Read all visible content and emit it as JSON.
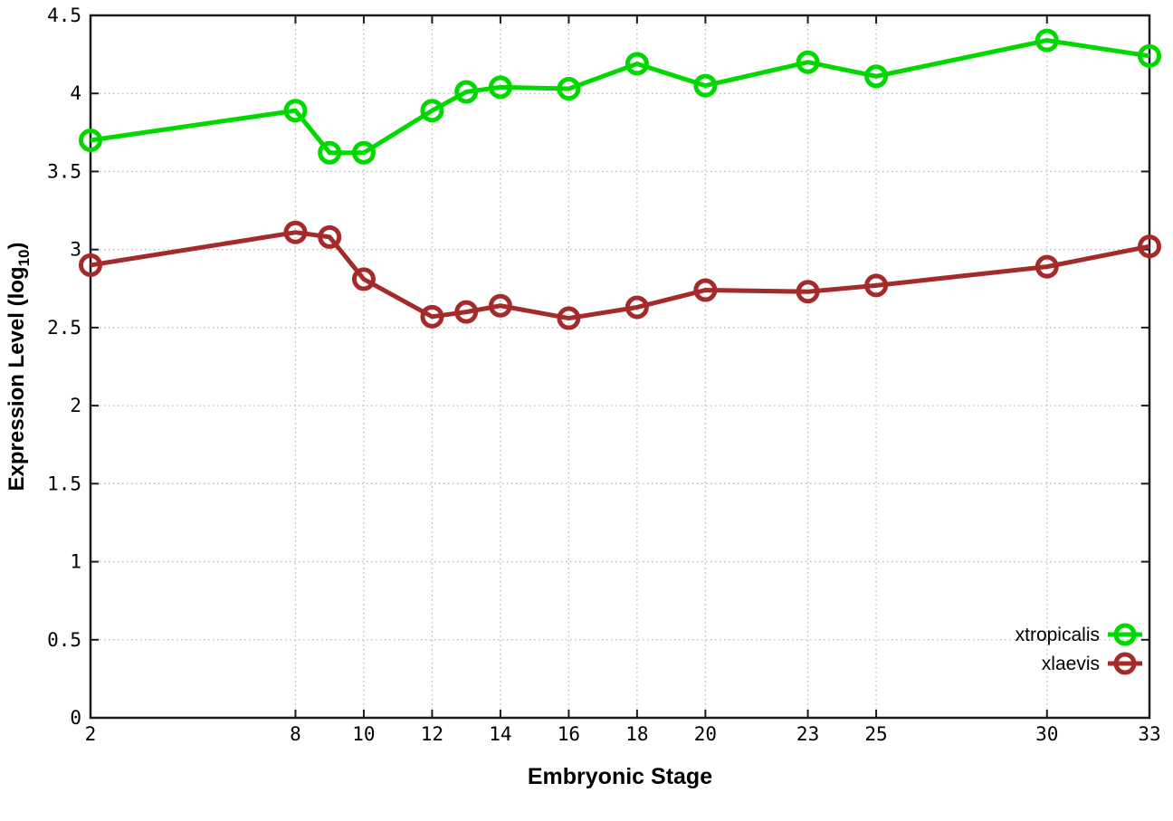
{
  "chart_data": {
    "type": "line",
    "title": "",
    "xlabel": "Embryonic Stage",
    "ylabel": "Expression Level (log10)",
    "ylabel_parts": {
      "main": "Expression Level (log",
      "sub": "10",
      "end": ")"
    },
    "x": [
      2,
      8,
      9,
      10,
      12,
      13,
      14,
      16,
      18,
      20,
      23,
      25,
      30,
      33
    ],
    "series": [
      {
        "name": "xtropicalis",
        "color": "#00D800",
        "values": [
          3.7,
          3.89,
          3.62,
          3.62,
          3.89,
          4.01,
          4.04,
          4.03,
          4.19,
          4.05,
          4.2,
          4.11,
          4.34,
          4.24
        ]
      },
      {
        "name": "xlaevis",
        "color": "#A52A2A",
        "values": [
          2.9,
          3.11,
          3.08,
          2.81,
          2.57,
          2.6,
          2.64,
          2.56,
          2.63,
          2.74,
          2.73,
          2.77,
          2.89,
          3.02
        ]
      }
    ],
    "xlim": [
      2,
      33
    ],
    "ylim": [
      0,
      4.5
    ],
    "xticks": [
      2,
      8,
      10,
      12,
      14,
      16,
      18,
      20,
      23,
      25,
      30,
      33
    ],
    "xtick_labels": [
      "2",
      "8",
      "10",
      "12",
      "14",
      "16",
      "18",
      "20",
      "23",
      "25",
      "30",
      "33"
    ],
    "yticks": [
      0,
      0.5,
      1,
      1.5,
      2,
      2.5,
      3,
      3.5,
      4,
      4.5
    ],
    "ytick_labels": [
      "0",
      "0.5",
      "1",
      "1.5",
      "2",
      "2.5",
      "3",
      "3.5",
      "4",
      "4.5"
    ],
    "grid": true,
    "legend_position": "inside-right-lower",
    "legend": [
      "xtropicalis",
      "xlaevis"
    ],
    "style_colors": {
      "background": "#ffffff",
      "axis": "#1b1b1b",
      "grid": "#b9b9b9",
      "text": "#000000"
    }
  }
}
